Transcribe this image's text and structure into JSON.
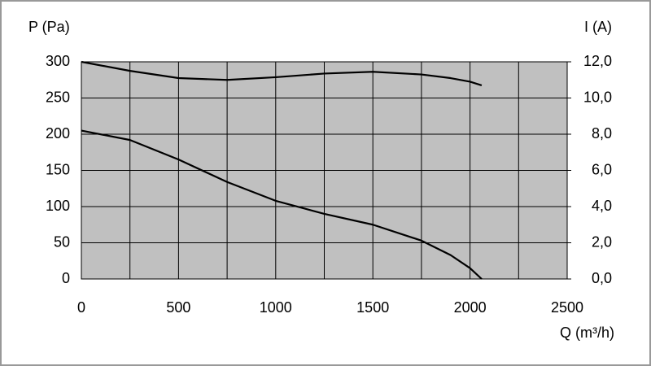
{
  "chart_data": {
    "type": "line",
    "ylabel": "P (Pa)",
    "y2label": "I (A)",
    "xlabel": "Q (m³/h)",
    "x": [
      0,
      250,
      500,
      750,
      1000,
      1250,
      1500,
      1750,
      1900,
      2000,
      2060
    ],
    "series": [
      {
        "name": "P",
        "color": "#000000",
        "values": [
          205,
          192,
          165,
          134,
          108,
          90,
          75,
          53,
          33,
          15,
          0
        ]
      },
      {
        "name": "I",
        "color": "#000000",
        "axis": "y2",
        "values": [
          12.0,
          11.5,
          11.1,
          11.0,
          11.15,
          11.35,
          11.45,
          11.3,
          11.1,
          10.9,
          10.7
        ]
      }
    ],
    "xlim": [
      0,
      2500
    ],
    "xticks": [
      0,
      500,
      1000,
      1500,
      2000,
      2500
    ],
    "xminor": [
      250,
      750,
      1250,
      1750,
      2250
    ],
    "ylim": [
      0,
      300
    ],
    "yticks": [
      0,
      50,
      100,
      150,
      200,
      250,
      300
    ],
    "y2lim": [
      0,
      12
    ],
    "y2ticks": [
      {
        "value": 0,
        "label": "0,0"
      },
      {
        "value": 2,
        "label": "2,0"
      },
      {
        "value": 4,
        "label": "4,0"
      },
      {
        "value": 6,
        "label": "6,0"
      },
      {
        "value": 8,
        "label": "8,0"
      },
      {
        "value": 10,
        "label": "10,0"
      },
      {
        "value": 12,
        "label": "12,0"
      }
    ],
    "grid": true,
    "plot_background": "#c0c0c0"
  }
}
